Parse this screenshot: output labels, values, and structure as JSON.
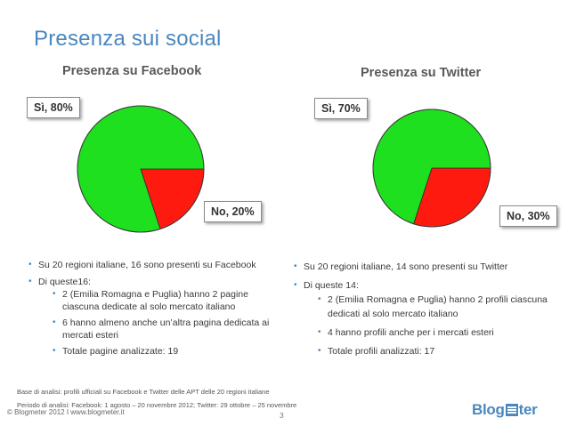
{
  "slide": {
    "title": "Presenza sui social",
    "page_number": "3"
  },
  "chart_data": [
    {
      "type": "pie",
      "title": "Presenza su Facebook",
      "categories": [
        "Sì",
        "No"
      ],
      "values": [
        80,
        20
      ],
      "labels": [
        "Sì, 80%",
        "No, 20%"
      ],
      "colors": [
        "#1fe01f",
        "#ff1a10"
      ]
    },
    {
      "type": "pie",
      "title": "Presenza su Twitter",
      "categories": [
        "Sì",
        "No"
      ],
      "values": [
        70,
        30
      ],
      "labels": [
        "Sì, 70%",
        "No, 30%"
      ],
      "colors": [
        "#1fe01f",
        "#ff1a10"
      ]
    }
  ],
  "facebook_list": {
    "item1": "Su 20 regioni italiane, 16 sono presenti su Facebook",
    "item2": "Di queste16:",
    "sub1": " 2 (Emilia Romagna e Puglia) hanno 2 pagine ciascuna dedicate al solo mercato italiano",
    "sub2": "6 hanno almeno anche un’altra pagina dedicata ai mercati esteri",
    "sub3": "Totale pagine analizzate: 19"
  },
  "twitter_list": {
    "item1": "Su 20 regioni italiane, 14 sono presenti su Twitter",
    "item2": "Di queste 14:",
    "sub1": "2 (Emilia Romagna e Puglia) hanno 2 profili ciascuna dedicati al solo mercato italiano",
    "sub2": "4 hanno profili anche per i mercati esteri",
    "sub3": "Totale profili analizzati: 17"
  },
  "footer": {
    "base": "Base di analisi: profili ufficiali su Facebook e Twitter delle APT delle 20 regioni italiane",
    "period": "Periodo di analisi: Facebook: 1 agosto – 20 novembre 2012; Twitter: 29 ottobre – 25 novembre",
    "copyright": "© Blogmeter 2012  I www.blogmeter.it",
    "logo_left": "Blog",
    "logo_right": "ter"
  },
  "colors": {
    "accent": "#4a87bf",
    "yes": "#1fe01f",
    "no": "#ff1a10"
  }
}
